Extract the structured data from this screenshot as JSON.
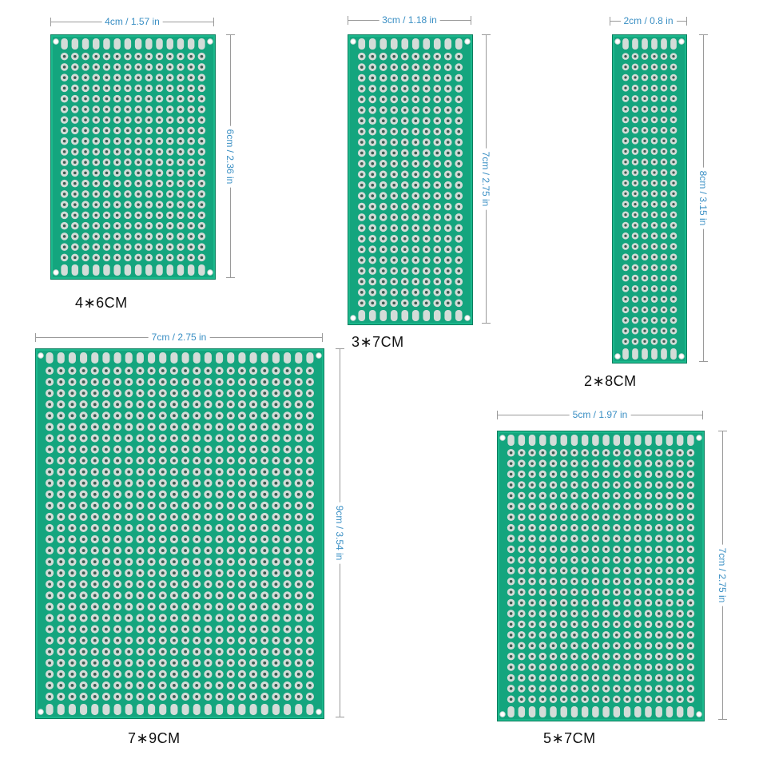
{
  "colors": {
    "board_green": "#14a57e",
    "pad_silver": "#d4dcd8",
    "hole_dark": "#3c5a50",
    "dimension_text": "#3a8fc4",
    "dimension_line": "#9a9a9a"
  },
  "boards": [
    {
      "id": "4x6",
      "caption": "4∗6CM",
      "width_label": "4cm / 1.57 in",
      "height_label": "6cm / 2.36 in",
      "grid_cols": 14,
      "grid_rows": 20
    },
    {
      "id": "3x7",
      "caption": "3∗7CM",
      "width_label": "3cm / 1.18 in",
      "height_label": "7cm / 2.75 in",
      "grid_cols": 10,
      "grid_rows": 24
    },
    {
      "id": "2x8",
      "caption": "2∗8CM",
      "width_label": "2cm / 0.8 in",
      "height_label": "8cm / 3.15 in",
      "grid_cols": 6,
      "grid_rows": 28
    },
    {
      "id": "7x9",
      "caption": "7∗9CM",
      "width_label": "7cm / 2.75 in",
      "height_label": "9cm / 3.54 in",
      "grid_cols": 24,
      "grid_rows": 30
    },
    {
      "id": "5x7",
      "caption": "5∗7CM",
      "width_label": "5cm / 1.97 in",
      "height_label": "7cm / 2.75 in",
      "grid_cols": 18,
      "grid_rows": 24
    }
  ]
}
